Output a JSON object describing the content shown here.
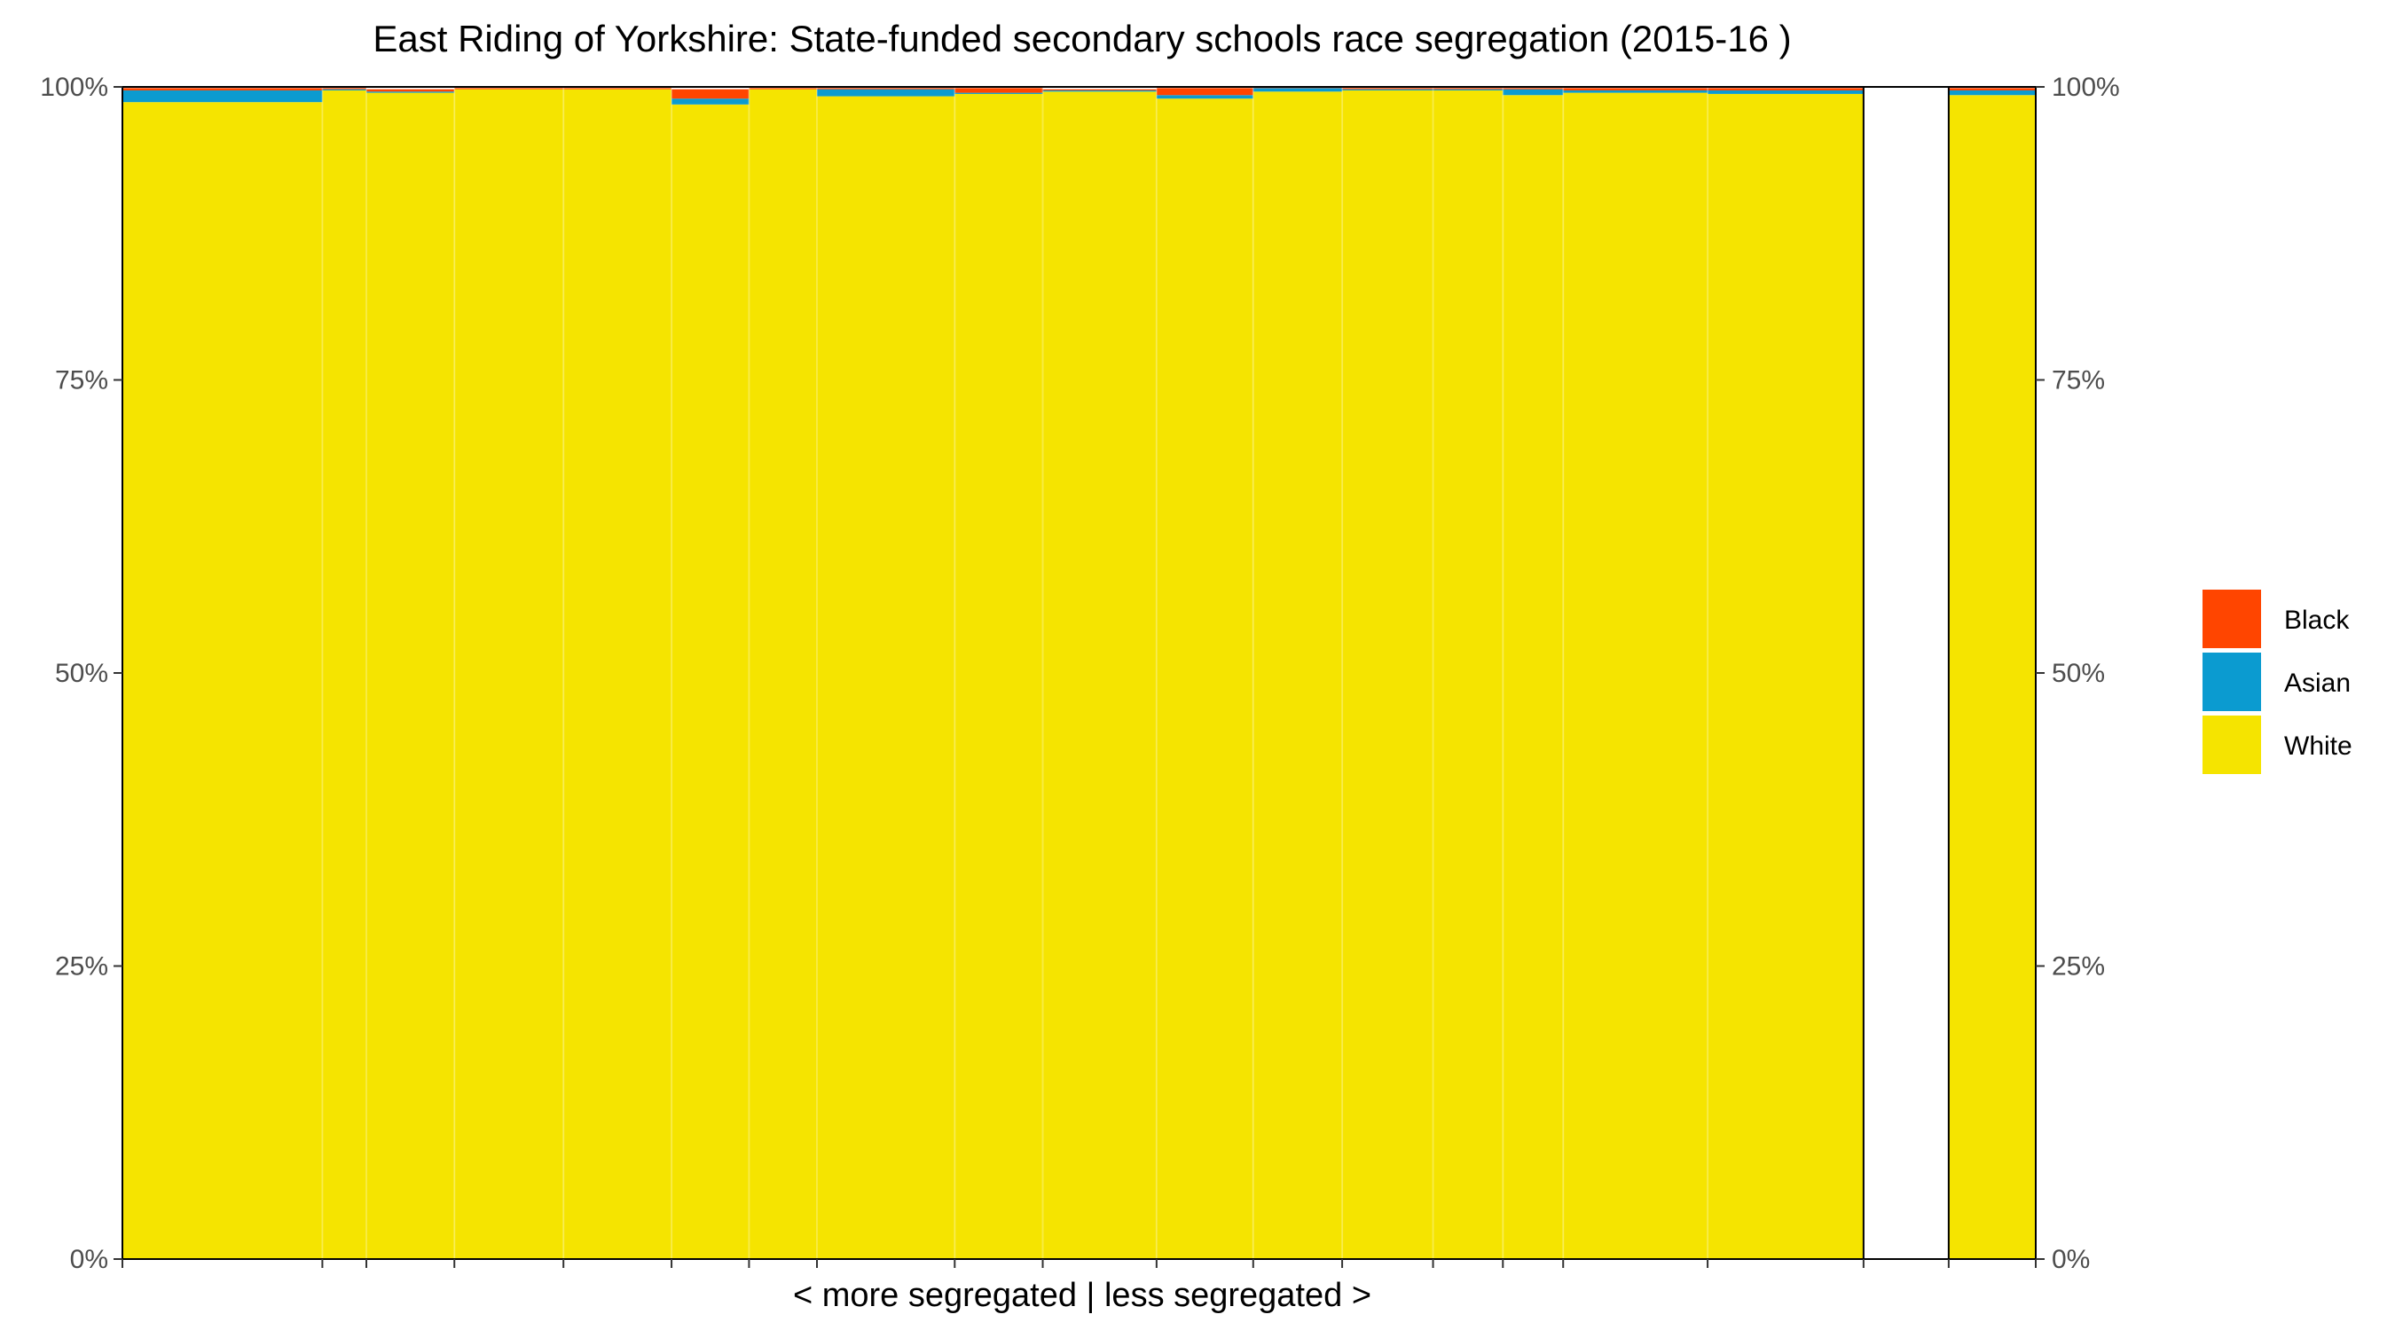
{
  "chart_data": {
    "type": "bar",
    "title": "East Riding of Yorkshire: State-funded secondary schools race segregation (2015-16 )",
    "xlabel": "< more segregated | less segregated >",
    "ylabel": "",
    "ylim": [
      0,
      1
    ],
    "y_ticks": [
      "0%",
      "25%",
      "50%",
      "75%",
      "100%"
    ],
    "legend": {
      "position": "right",
      "items": [
        {
          "name": "Black",
          "color": "#ff4500"
        },
        {
          "name": "Asian",
          "color": "#0b9bd0"
        },
        {
          "name": "White",
          "color": "#f5e400"
        }
      ]
    },
    "x_scale": [
      0,
      1.0
    ],
    "schools": [
      {
        "start": 0.0,
        "width": 0.1045,
        "white": 0.987,
        "asian": 0.01,
        "black": 0.002
      },
      {
        "start": 0.1045,
        "width": 0.023,
        "white": 0.997,
        "asian": 0.001,
        "black": 0.001
      },
      {
        "start": 0.1275,
        "width": 0.046,
        "white": 0.995,
        "asian": 0.001,
        "black": 0.002
      },
      {
        "start": 0.1735,
        "width": 0.057,
        "white": 0.998,
        "asian": 0.0,
        "black": 0.001
      },
      {
        "start": 0.2305,
        "width": 0.0565,
        "white": 0.998,
        "asian": 0.0,
        "black": 0.001
      },
      {
        "start": 0.287,
        "width": 0.0405,
        "white": 0.985,
        "asian": 0.005,
        "black": 0.008
      },
      {
        "start": 0.3275,
        "width": 0.0355,
        "white": 0.998,
        "asian": 0.0,
        "black": 0.001
      },
      {
        "start": 0.363,
        "width": 0.072,
        "white": 0.992,
        "asian": 0.006,
        "black": 0.001
      },
      {
        "start": 0.435,
        "width": 0.046,
        "white": 0.994,
        "asian": 0.001,
        "black": 0.004
      },
      {
        "start": 0.481,
        "width": 0.0595,
        "white": 0.996,
        "asian": 0.001,
        "black": 0.001
      },
      {
        "start": 0.5405,
        "width": 0.0505,
        "white": 0.99,
        "asian": 0.003,
        "black": 0.006
      },
      {
        "start": 0.591,
        "width": 0.0465,
        "white": 0.996,
        "asian": 0.003,
        "black": 0.001
      },
      {
        "start": 0.6375,
        "width": 0.0475,
        "white": 0.997,
        "asian": 0.001,
        "black": 0.001
      },
      {
        "start": 0.685,
        "width": 0.0365,
        "white": 0.997,
        "asian": 0.001,
        "black": 0.001
      },
      {
        "start": 0.7215,
        "width": 0.0315,
        "white": 0.993,
        "asian": 0.005,
        "black": 0.001
      },
      {
        "start": 0.753,
        "width": 0.0755,
        "white": 0.995,
        "asian": 0.002,
        "black": 0.002
      },
      {
        "start": 0.8285,
        "width": 0.0815,
        "white": 0.994,
        "asian": 0.003,
        "black": 0.002
      }
    ],
    "total": {
      "start": 0.9545,
      "width": 0.0455,
      "white": 0.993,
      "asian": 0.004,
      "black": 0.002
    }
  }
}
